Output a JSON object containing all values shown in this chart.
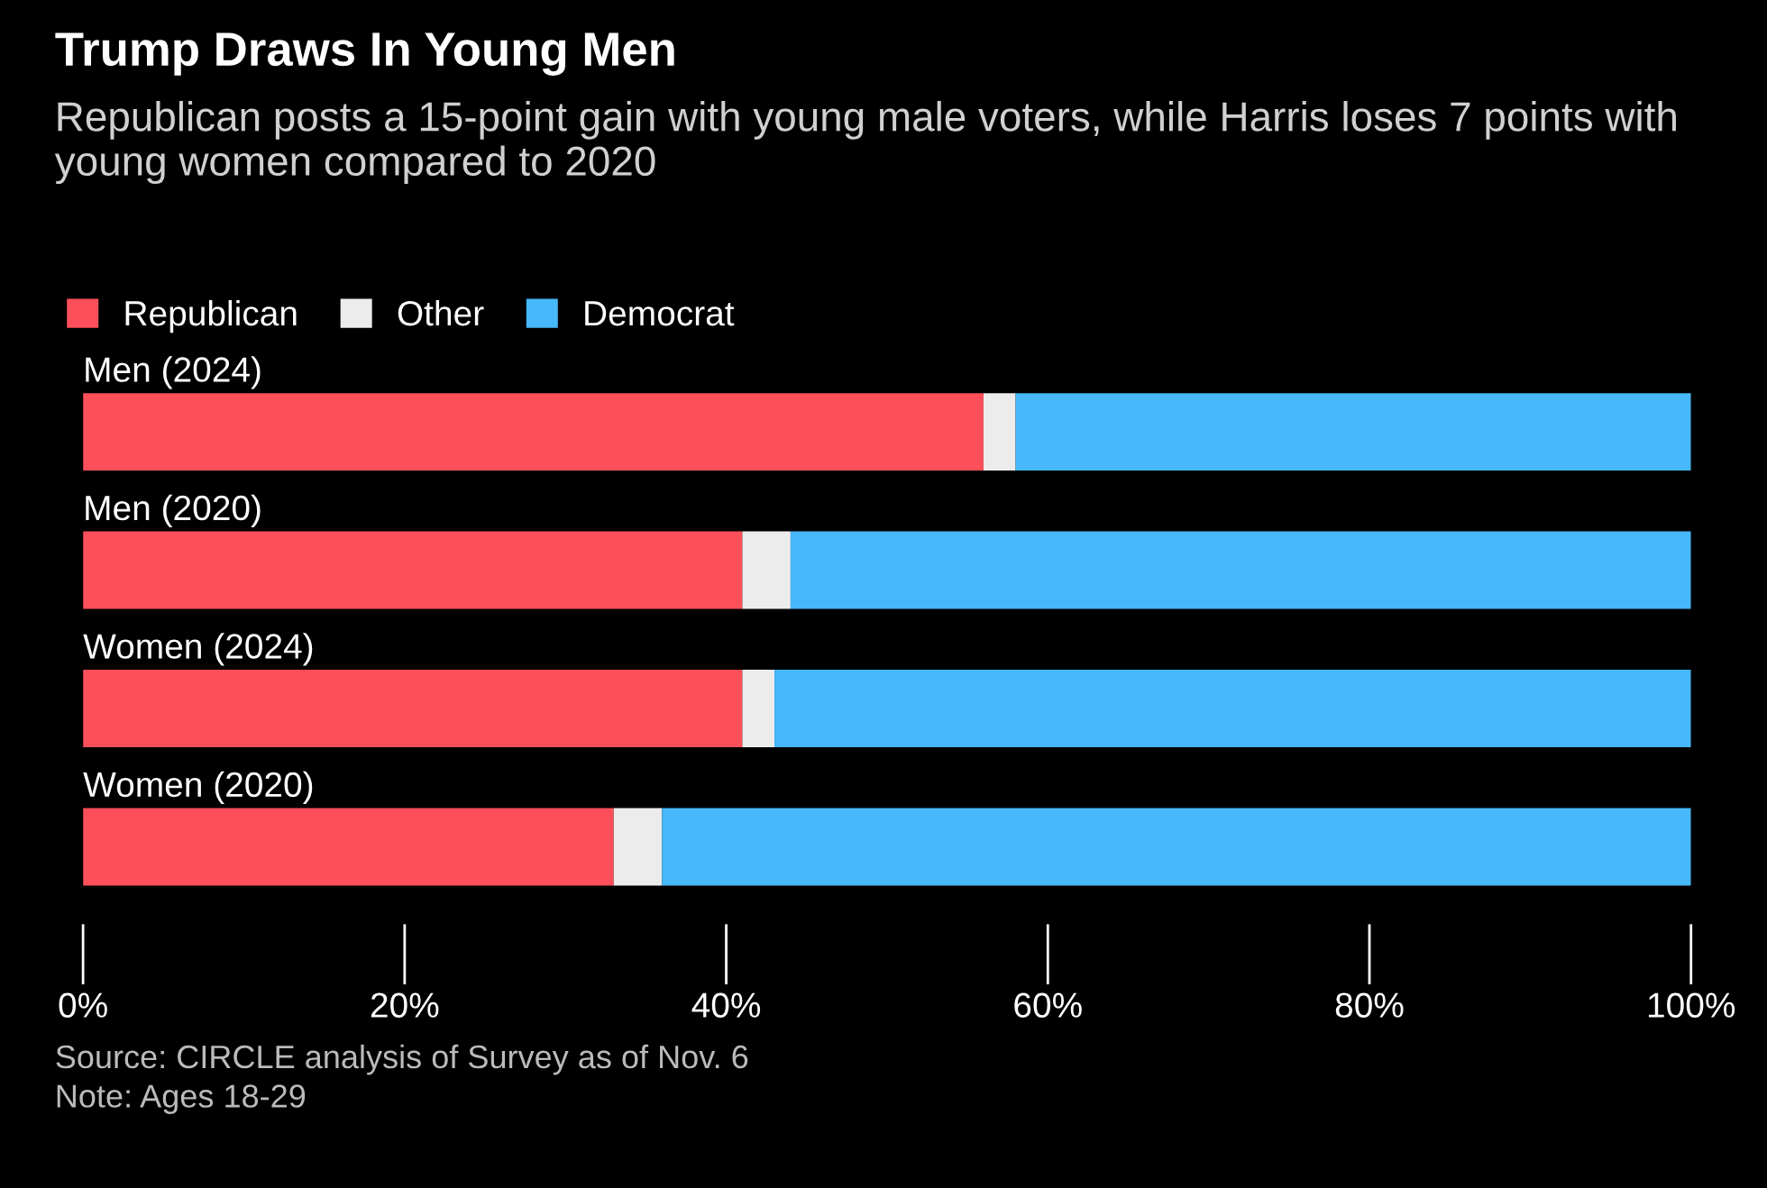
{
  "chart_data": {
    "type": "bar",
    "orientation": "horizontal",
    "stacked": true,
    "title": "Trump Draws In Young Men",
    "subtitle": "Republican posts a 15-point gain with young male voters, while Harris loses 7 points with young women compared to 2020",
    "categories": [
      "Men (2024)",
      "Men (2020)",
      "Women (2024)",
      "Women (2020)"
    ],
    "series": [
      {
        "name": "Republican",
        "color": "#fd4f5a",
        "values": [
          56,
          41,
          41,
          33
        ]
      },
      {
        "name": "Other",
        "color": "#ececec",
        "values": [
          2,
          3,
          2,
          3
        ]
      },
      {
        "name": "Democrat",
        "color": "#47b8f9",
        "values": [
          42,
          56,
          57,
          64
        ]
      }
    ],
    "xlim": [
      0,
      100
    ],
    "xticks": [
      {
        "value": 0,
        "label": "0%"
      },
      {
        "value": 20,
        "label": "20%"
      },
      {
        "value": 40,
        "label": "40%"
      },
      {
        "value": 60,
        "label": "60%"
      },
      {
        "value": 80,
        "label": "80%"
      },
      {
        "value": 100,
        "label": "100%"
      }
    ],
    "grid": false,
    "legend": "top left",
    "annotations": [
      "Source: CIRCLE analysis of Survey as of Nov. 6",
      "Note: Ages 18-29"
    ]
  }
}
